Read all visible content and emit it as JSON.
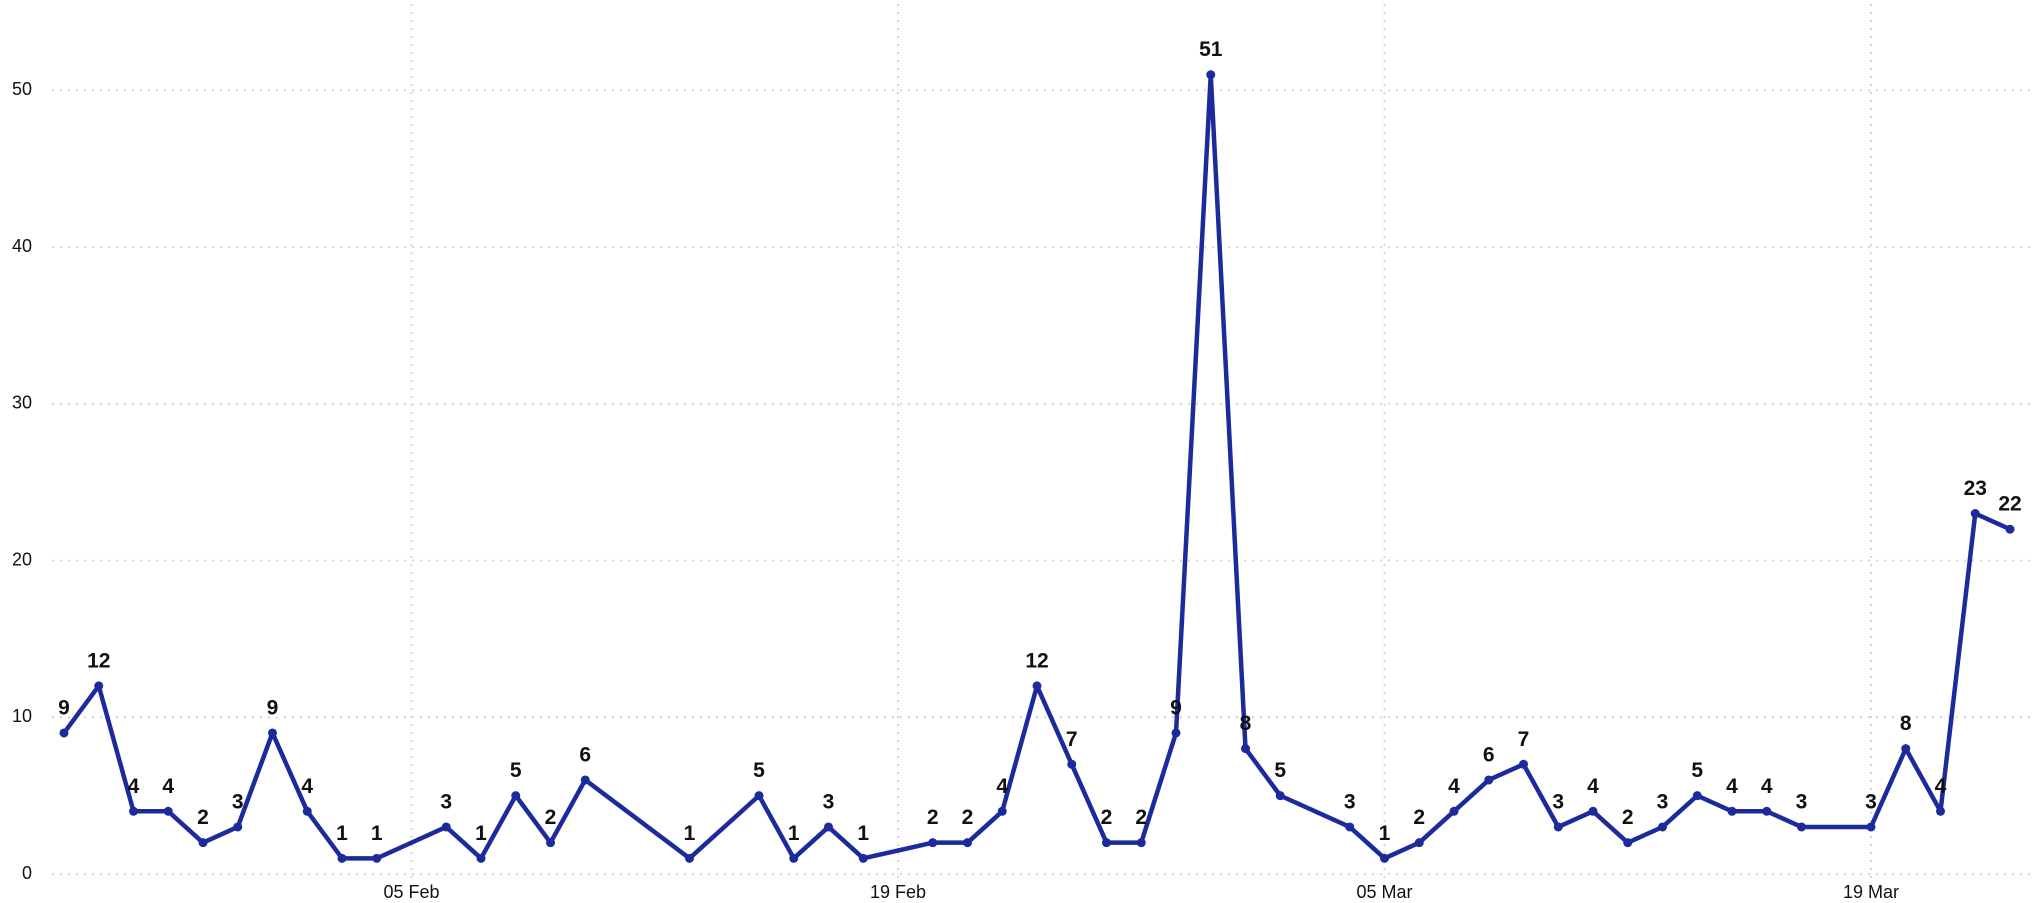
{
  "chart_data": {
    "type": "line",
    "x": [
      "26 Jan",
      "27 Jan",
      "28 Jan",
      "29 Jan",
      "30 Jan",
      "31 Jan",
      "01 Feb",
      "02 Feb",
      "03 Feb",
      "04 Feb",
      "06 Feb",
      "07 Feb",
      "08 Feb",
      "09 Feb",
      "10 Feb",
      "13 Feb",
      "15 Feb",
      "16 Feb",
      "17 Feb",
      "18 Feb",
      "20 Feb",
      "21 Feb",
      "22 Feb",
      "23 Feb",
      "24 Feb",
      "25 Feb",
      "26 Feb",
      "27 Feb",
      "28 Feb",
      "01 Mar",
      "02 Mar",
      "04 Mar",
      "05 Mar",
      "06 Mar",
      "07 Mar",
      "08 Mar",
      "09 Mar",
      "10 Mar",
      "11 Mar",
      "12 Mar",
      "13 Mar",
      "14 Mar",
      "15 Mar",
      "16 Mar",
      "17 Mar",
      "19 Mar",
      "20 Mar",
      "21 Mar",
      "22 Mar",
      "23 Mar"
    ],
    "series": [
      {
        "color": "#1c2a9c",
        "values": [
          9,
          12,
          4,
          4,
          2,
          3,
          9,
          4,
          1,
          1,
          3,
          1,
          5,
          2,
          6,
          1,
          5,
          1,
          3,
          1,
          2,
          2,
          4,
          12,
          7,
          2,
          2,
          9,
          51,
          8,
          5,
          3,
          1,
          2,
          4,
          6,
          7,
          3,
          4,
          2,
          3,
          5,
          4,
          4,
          3,
          3,
          8,
          4,
          23,
          22
        ]
      }
    ],
    "xlim": [
      "26 Jan",
      "23 Mar"
    ],
    "xticks": [
      "05 Feb",
      "19 Feb",
      "05 Mar",
      "19 Mar"
    ],
    "ylim": [
      0,
      55
    ],
    "yticks": [
      0,
      10,
      20,
      30,
      40,
      50
    ],
    "grid": true
  }
}
